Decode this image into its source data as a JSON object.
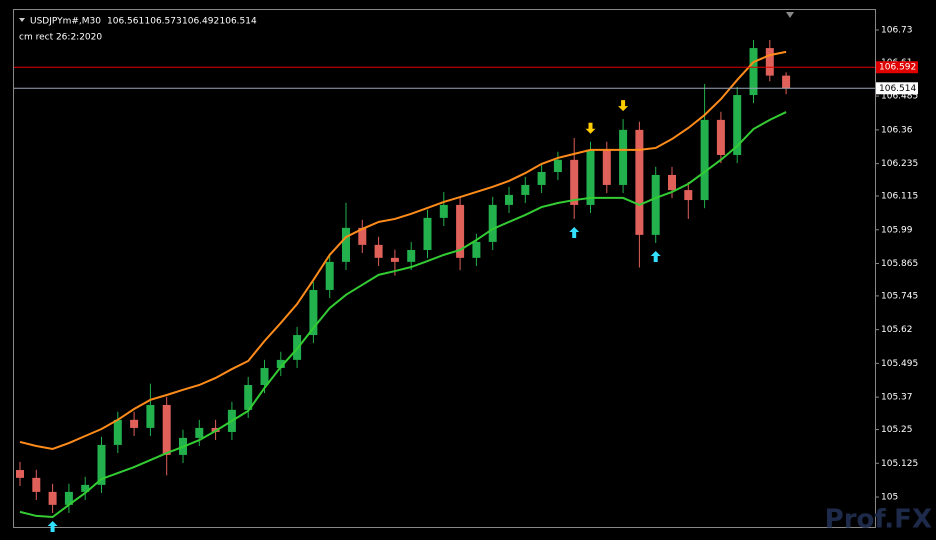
{
  "chart_data": {
    "type": "candlestick",
    "title": "USDJPYm#,M30",
    "subtitle": "cm rect 26:2:2020",
    "watermark": "Prof.FX",
    "up_color": "#22b14c",
    "down_color": "#e0605a",
    "open": [
      105.1,
      105.071,
      105.019,
      104.971,
      105.019,
      105.045,
      105.193,
      105.286,
      105.256,
      105.341,
      105.156,
      105.219,
      105.256,
      105.241,
      105.323,
      105.415,
      105.478,
      105.508,
      105.6,
      105.767,
      105.871,
      105.997,
      105.934,
      105.886,
      105.871,
      105.915,
      106.034,
      106.082,
      105.886,
      105.945,
      106.082,
      106.119,
      106.156,
      106.204,
      106.249,
      106.082,
      106.286,
      106.156,
      106.36,
      105.971,
      106.193,
      106.137,
      106.1,
      106.397,
      106.267,
      106.489,
      106.663,
      106.561
    ],
    "high": [
      105.13,
      105.101,
      105.049,
      105.049,
      105.075,
      105.223,
      105.316,
      105.316,
      105.42,
      105.371,
      105.249,
      105.286,
      105.286,
      105.353,
      105.445,
      105.508,
      105.538,
      105.63,
      105.797,
      105.901,
      106.09,
      106.027,
      105.964,
      105.916,
      105.945,
      106.064,
      106.13,
      106.112,
      105.975,
      106.112,
      106.149,
      106.186,
      106.234,
      106.279,
      106.33,
      106.316,
      106.316,
      106.4,
      106.39,
      106.223,
      106.223,
      106.167,
      106.53,
      106.427,
      106.519,
      106.693,
      106.693,
      106.573
    ],
    "low": [
      105.041,
      104.989,
      104.941,
      104.941,
      104.989,
      105.015,
      105.163,
      105.226,
      105.226,
      105.08,
      105.126,
      105.189,
      105.211,
      105.211,
      105.293,
      105.385,
      105.448,
      105.478,
      105.57,
      105.737,
      105.841,
      105.904,
      105.856,
      105.82,
      105.841,
      105.885,
      106.004,
      105.84,
      105.856,
      105.915,
      106.052,
      106.089,
      106.126,
      106.174,
      106.03,
      106.052,
      106.126,
      106.126,
      105.85,
      105.941,
      106.107,
      106.03,
      106.07,
      106.237,
      106.237,
      106.459,
      106.54,
      106.492
    ],
    "close": [
      105.071,
      105.019,
      104.971,
      105.019,
      105.045,
      105.193,
      105.286,
      105.256,
      105.341,
      105.156,
      105.219,
      105.256,
      105.241,
      105.323,
      105.415,
      105.478,
      105.508,
      105.6,
      105.767,
      105.871,
      105.997,
      105.934,
      105.886,
      105.871,
      105.915,
      106.034,
      106.082,
      105.886,
      105.945,
      106.082,
      106.119,
      106.156,
      106.204,
      106.249,
      106.082,
      106.286,
      106.156,
      106.36,
      105.971,
      106.193,
      106.137,
      106.1,
      106.397,
      106.267,
      106.489,
      106.663,
      106.561,
      106.514
    ],
    "upper_band": {
      "color": "#ff8c1a",
      "values": [
        105.204,
        105.189,
        105.178,
        105.2,
        105.226,
        105.252,
        105.286,
        105.326,
        105.36,
        105.378,
        105.397,
        105.415,
        105.441,
        105.474,
        105.504,
        105.578,
        105.645,
        105.715,
        105.804,
        105.897,
        105.963,
        105.993,
        106.019,
        106.03,
        106.049,
        106.071,
        106.093,
        106.111,
        106.13,
        106.149,
        106.171,
        106.2,
        106.234,
        106.256,
        106.271,
        106.286,
        106.286,
        106.286,
        106.286,
        106.293,
        106.326,
        106.367,
        106.415,
        106.474,
        106.545,
        106.611,
        106.637,
        106.649
      ]
    },
    "lower_band": {
      "color": "#33cc33",
      "values": [
        104.945,
        104.93,
        104.926,
        104.971,
        105.015,
        105.067,
        105.089,
        105.111,
        105.137,
        105.163,
        105.186,
        105.211,
        105.245,
        105.282,
        105.319,
        105.404,
        105.482,
        105.549,
        105.626,
        105.7,
        105.749,
        105.786,
        105.823,
        105.837,
        105.852,
        105.874,
        105.897,
        105.915,
        105.952,
        105.993,
        106.019,
        106.045,
        106.074,
        106.089,
        106.1,
        106.108,
        106.108,
        106.108,
        106.082,
        106.108,
        106.13,
        106.16,
        106.204,
        106.249,
        106.3,
        106.363,
        106.397,
        106.426
      ]
    },
    "up_arrows": {
      "color": "#33e0ff",
      "candles": [
        2,
        34,
        39
      ]
    },
    "down_arrows": {
      "color": "#ffcc00",
      "candles": [
        35,
        37
      ]
    },
    "price_lines": [
      {
        "value": 106.592,
        "color": "#e00000"
      },
      {
        "value": 106.514,
        "color": "#9aa8b8"
      }
    ],
    "ylim": [
      104.889,
      106.804
    ],
    "yticks": [
      105.0,
      105.125,
      105.25,
      105.37,
      105.495,
      105.62,
      105.745,
      105.865,
      105.99,
      106.115,
      106.235,
      106.36,
      106.485,
      106.61,
      106.73
    ]
  }
}
